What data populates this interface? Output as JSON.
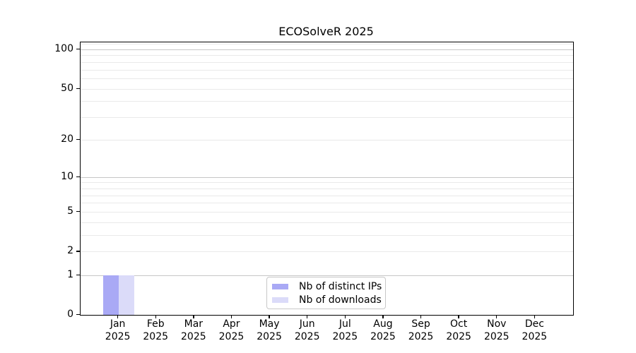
{
  "chart_data": {
    "type": "bar",
    "title": "ECOSolveR 2025",
    "x_tick_months": [
      "Jan",
      "Feb",
      "Mar",
      "Apr",
      "May",
      "Jun",
      "Jul",
      "Aug",
      "Sep",
      "Oct",
      "Nov",
      "Dec"
    ],
    "x_tick_year": "2025",
    "categories": [
      "Jan 2025",
      "Feb 2025",
      "Mar 2025",
      "Apr 2025",
      "May 2025",
      "Jun 2025",
      "Jul 2025",
      "Aug 2025",
      "Sep 2025",
      "Oct 2025",
      "Nov 2025",
      "Dec 2025"
    ],
    "series": [
      {
        "name": "Nb of distinct IPs",
        "color": "#a9a9f5",
        "values": [
          1,
          0,
          0,
          0,
          0,
          0,
          0,
          0,
          0,
          0,
          0,
          0
        ]
      },
      {
        "name": "Nb of downloads",
        "color": "#dbdbf9",
        "values": [
          1,
          0,
          0,
          0,
          0,
          0,
          0,
          0,
          0,
          0,
          0,
          0
        ]
      }
    ],
    "yscale": "log1p",
    "ylim": [
      0,
      113
    ],
    "y_tick_values": [
      0,
      1,
      2,
      5,
      10,
      20,
      50,
      100
    ],
    "y_major_gridlines": [
      1,
      10,
      100
    ],
    "y_minor_gridlines": [
      2,
      3,
      4,
      5,
      6,
      7,
      8,
      9,
      20,
      30,
      40,
      50,
      60,
      70,
      80,
      90,
      110
    ],
    "grid_on": true,
    "legend_position": "lower center",
    "xlabel": "",
    "ylabel": "",
    "colors": {
      "grid_major": "#c6c6c6",
      "grid_minor": "#e9e9e9",
      "axis_frame": "#000000",
      "legend_border": "#c8c8c8",
      "background": "#ffffff"
    }
  }
}
